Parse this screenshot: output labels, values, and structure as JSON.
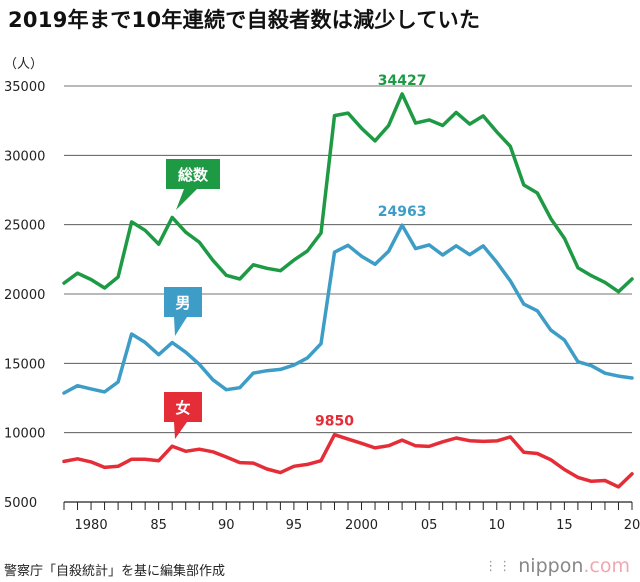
{
  "title": "2019年まで10年連続で自殺者数は減少していた",
  "source": "警察庁「自殺統計」を基に編集部作成",
  "logo": {
    "text": "nippon",
    "suffix": ".com"
  },
  "chart_data": {
    "type": "line",
    "unit_label": "（人）",
    "x": [
      1978,
      1979,
      1980,
      1981,
      1982,
      1983,
      1984,
      1985,
      1986,
      1987,
      1988,
      1989,
      1990,
      1991,
      1992,
      1993,
      1994,
      1995,
      1996,
      1997,
      1998,
      1999,
      2000,
      2001,
      2002,
      2003,
      2004,
      2005,
      2006,
      2007,
      2008,
      2009,
      2010,
      2011,
      2012,
      2013,
      2014,
      2015,
      2016,
      2017,
      2018,
      2019,
      2020
    ],
    "xlim": [
      1978,
      2020
    ],
    "ylim": [
      5000,
      35000
    ],
    "y_ticks": [
      5000,
      10000,
      15000,
      20000,
      25000,
      30000,
      35000
    ],
    "x_tick_labels": [
      {
        "x": 1980,
        "label": "1980"
      },
      {
        "x": 1985,
        "label": "85"
      },
      {
        "x": 1990,
        "label": "90"
      },
      {
        "x": 1995,
        "label": "95"
      },
      {
        "x": 2000,
        "label": "2000"
      },
      {
        "x": 2005,
        "label": "05"
      },
      {
        "x": 2010,
        "label": "10"
      },
      {
        "x": 2015,
        "label": "15"
      },
      {
        "x": 2020,
        "label": "20"
      }
    ],
    "grid": true,
    "series": [
      {
        "name": "総数",
        "color": "#1e9a44",
        "values": [
          20788,
          21503,
          21048,
          20434,
          21228,
          25202,
          24596,
          23599,
          25524,
          24460,
          23742,
          22436,
          21346,
          21084,
          22104,
          21851,
          21679,
          22445,
          23104,
          24391,
          32863,
          33048,
          31957,
          31042,
          32143,
          34427,
          32325,
          32552,
          32155,
          33093,
          32249,
          32845,
          31690,
          30651,
          27858,
          27283,
          25427,
          24025,
          21897,
          21321,
          20840,
          20169,
          21081
        ],
        "peak_label": "34427",
        "peak_x": 2003,
        "peak_y": 34427
      },
      {
        "name": "男",
        "color": "#3d9dc6",
        "values": [
          12859,
          13386,
          13155,
          12942,
          13654,
          17116,
          16508,
          15624,
          16497,
          15802,
          14934,
          13818,
          13102,
          13242,
          14296,
          14468,
          14560,
          14874,
          15393,
          16416,
          23013,
          23512,
          22727,
          22144,
          23080,
          24963,
          23272,
          23540,
          22813,
          23478,
          22831,
          23472,
          22283,
          20955,
          19273,
          18787,
          17386,
          16681,
          15121,
          14826,
          14290,
          14078,
          13943
        ],
        "peak_label": "24963",
        "peak_x": 2003,
        "peak_y": 24963
      },
      {
        "name": "女",
        "color": "#e52d37",
        "values": [
          7929,
          8117,
          7893,
          7492,
          7574,
          8086,
          8088,
          7975,
          9027,
          8658,
          8808,
          8618,
          8244,
          7842,
          7808,
          7383,
          7119,
          7571,
          7711,
          7975,
          9850,
          9536,
          9230,
          8898,
          9063,
          9464,
          9053,
          9012,
          9342,
          9615,
          9418,
          9373,
          9407,
          9696,
          8585,
          8496,
          8041,
          7344,
          6776,
          6495,
          6550,
          6091,
          7026
        ],
        "peak_label": "9850",
        "peak_x": 1998,
        "peak_y": 9850
      }
    ]
  }
}
